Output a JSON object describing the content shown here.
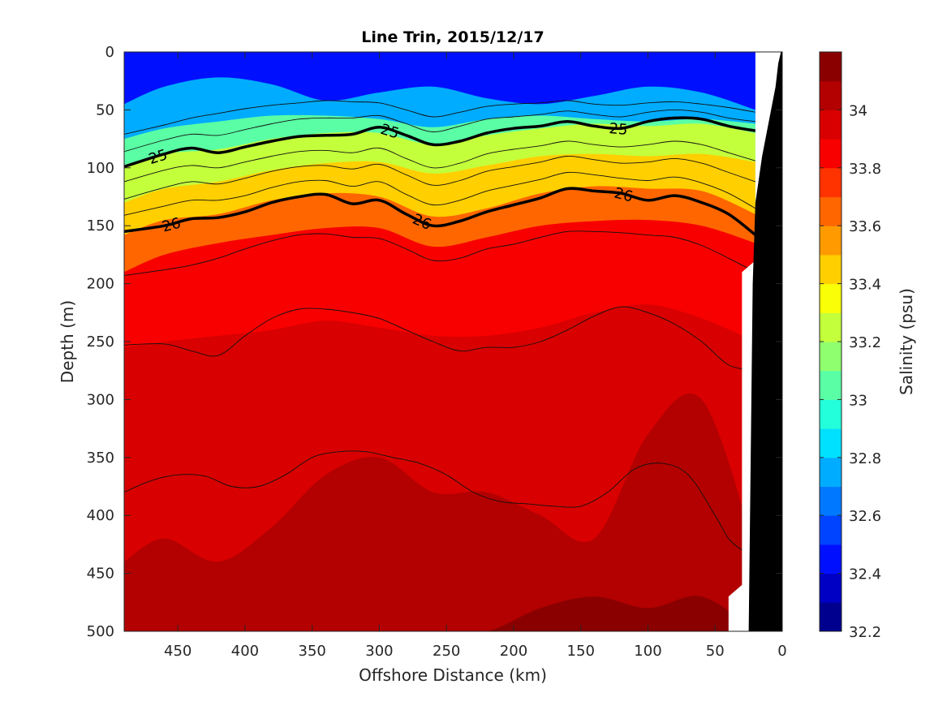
{
  "chart_data": {
    "type": "heatmap",
    "title": "Line Trin, 2015/12/17",
    "xlabel": "Offshore Distance (km)",
    "ylabel": "Depth (m)",
    "colorbar_label": "Salinity (psu)",
    "xlim": [
      490,
      0
    ],
    "ylim": [
      0,
      500
    ],
    "x_ticks": [
      450,
      400,
      350,
      300,
      250,
      200,
      150,
      100,
      50,
      0
    ],
    "y_ticks": [
      0,
      50,
      100,
      150,
      200,
      250,
      300,
      350,
      400,
      450,
      500
    ],
    "color_range": [
      32.2,
      34.2
    ],
    "colorbar_ticks": [
      32.2,
      32.4,
      32.6,
      32.8,
      33,
      33.2,
      33.4,
      33.6,
      33.8,
      34
    ],
    "colorbar_tick_labels": [
      "32.2",
      "32.4",
      "32.6",
      "32.8",
      "33",
      "33.2",
      "33.4",
      "33.6",
      "33.8",
      "34"
    ],
    "colorbar_levels": [
      32.2,
      32.3,
      32.4,
      32.5,
      32.6,
      32.7,
      32.8,
      32.9,
      33.0,
      33.1,
      33.2,
      33.3,
      33.4,
      33.5,
      33.6,
      33.7,
      33.8,
      33.9,
      34.0,
      34.1,
      34.2
    ],
    "colormap": [
      "#00008f",
      "#0000c4",
      "#0010ff",
      "#0044ff",
      "#0078ff",
      "#00acff",
      "#00e0ff",
      "#24ffdb",
      "#5affa5",
      "#90ff6f",
      "#c4ff3b",
      "#f8ff07",
      "#ffcf00",
      "#ff9b00",
      "#ff6600",
      "#ff3300",
      "#f80000",
      "#d80000",
      "#b30000",
      "#8a0000"
    ],
    "salinity_isolines": {
      "x": [
        490,
        460,
        420,
        380,
        340,
        300,
        260,
        220,
        180,
        140,
        100,
        60,
        20
      ],
      "levels": [
        {
          "salinity": 32.5,
          "depth": [
            45,
            30,
            22,
            28,
            42,
            35,
            30,
            40,
            45,
            38,
            30,
            35,
            50
          ]
        },
        {
          "salinity": 32.9,
          "depth": [
            75,
            66,
            60,
            55,
            55,
            58,
            65,
            58,
            55,
            58,
            60,
            58,
            62
          ]
        },
        {
          "salinity": 33.1,
          "depth": [
            100,
            88,
            84,
            75,
            70,
            70,
            80,
            72,
            66,
            62,
            64,
            62,
            70
          ]
        },
        {
          "salinity": 33.3,
          "depth": [
            130,
            118,
            112,
            102,
            96,
            95,
            105,
            98,
            90,
            88,
            90,
            88,
            95
          ]
        },
        {
          "salinity": 33.5,
          "depth": [
            158,
            145,
            140,
            128,
            122,
            125,
            142,
            135,
            122,
            116,
            118,
            120,
            140
          ]
        },
        {
          "salinity": 33.7,
          "depth": [
            190,
            175,
            165,
            158,
            152,
            152,
            168,
            160,
            150,
            146,
            145,
            150,
            165
          ]
        },
        {
          "salinity": 33.9,
          "depth": [
            255,
            250,
            245,
            240,
            232,
            238,
            245,
            245,
            238,
            225,
            218,
            230,
            250
          ]
        },
        {
          "salinity": 34.0,
          "depth": [
            440,
            420,
            440,
            410,
            365,
            350,
            380,
            380,
            400,
            420,
            330,
            300,
            430
          ]
        },
        {
          "salinity": 34.1,
          "depth": [
            500,
            500,
            500,
            500,
            500,
            500,
            500,
            500,
            480,
            470,
            480,
            470,
            500
          ]
        }
      ]
    },
    "density_contours": [
      {
        "label": "25",
        "x": [
          490,
          460,
          440,
          420,
          400,
          380,
          360,
          340,
          320,
          300,
          280,
          260,
          240,
          220,
          200,
          180,
          160,
          140,
          120,
          100,
          80,
          60,
          40,
          20
        ],
        "depth": [
          99,
          88,
          83,
          87,
          82,
          77,
          73,
          72,
          71,
          65,
          72,
          80,
          77,
          70,
          66,
          64,
          60,
          64,
          66,
          60,
          57,
          58,
          64,
          68
        ]
      },
      {
        "label": "26",
        "x": [
          490,
          460,
          440,
          420,
          400,
          380,
          360,
          340,
          320,
          300,
          280,
          260,
          240,
          220,
          200,
          180,
          160,
          140,
          120,
          100,
          80,
          60,
          40,
          20
        ],
        "depth": [
          155,
          150,
          144,
          143,
          138,
          130,
          125,
          123,
          131,
          128,
          140,
          150,
          146,
          138,
          132,
          126,
          118,
          120,
          122,
          128,
          124,
          130,
          140,
          158
        ]
      }
    ],
    "thin_isopycnals": [
      {
        "x": [
          490,
          460,
          440,
          420,
          400,
          380,
          360,
          340,
          320,
          300,
          280,
          260,
          240,
          220,
          200,
          180,
          160,
          140,
          120,
          100,
          80,
          60,
          40,
          20
        ],
        "depth": [
          71,
          63,
          57,
          53,
          49,
          46,
          44,
          42,
          43,
          44,
          50,
          56,
          52,
          47,
          45,
          44,
          42,
          45,
          46,
          44,
          43,
          45,
          48,
          52
        ]
      },
      {
        "x": [
          490,
          460,
          440,
          420,
          400,
          380,
          360,
          340,
          320,
          300,
          280,
          260,
          240,
          220,
          200,
          180,
          160,
          140,
          120,
          100,
          80,
          60,
          40,
          20
        ],
        "depth": [
          86,
          76,
          71,
          72,
          67,
          62,
          58,
          57,
          57,
          55,
          62,
          69,
          64,
          58,
          56,
          54,
          51,
          54,
          56,
          52,
          50,
          52,
          57,
          60
        ]
      },
      {
        "x": [
          490,
          460,
          440,
          420,
          400,
          380,
          360,
          340,
          320,
          300,
          280,
          260,
          240,
          220,
          200,
          180,
          160,
          140,
          120,
          100,
          80,
          60,
          40,
          20
        ],
        "depth": [
          112,
          102,
          98,
          100,
          95,
          90,
          86,
          85,
          87,
          83,
          92,
          100,
          96,
          88,
          84,
          81,
          77,
          80,
          82,
          80,
          77,
          80,
          87,
          94
        ]
      },
      {
        "x": [
          490,
          460,
          440,
          420,
          400,
          380,
          360,
          340,
          320,
          300,
          280,
          260,
          240,
          220,
          200,
          180,
          160,
          140,
          120,
          100,
          80,
          60,
          40,
          20
        ],
        "depth": [
          127,
          117,
          112,
          114,
          109,
          103,
          99,
          98,
          101,
          97,
          106,
          115,
          111,
          103,
          99,
          95,
          90,
          93,
          96,
          95,
          92,
          96,
          104,
          112
        ]
      },
      {
        "x": [
          490,
          460,
          440,
          420,
          400,
          380,
          360,
          340,
          320,
          300,
          280,
          260,
          240,
          220,
          200,
          180,
          160,
          140,
          120,
          100,
          80,
          60,
          40,
          20
        ],
        "depth": [
          141,
          133,
          128,
          128,
          124,
          117,
          112,
          111,
          116,
          112,
          123,
          132,
          128,
          120,
          115,
          110,
          104,
          106,
          109,
          111,
          108,
          113,
          122,
          135
        ]
      },
      {
        "x": [
          490,
          460,
          440,
          420,
          400,
          380,
          360,
          340,
          320,
          300,
          280,
          260,
          240,
          220,
          200,
          180,
          160,
          140,
          120,
          100,
          80,
          60,
          40,
          20
        ],
        "depth": [
          193,
          188,
          184,
          178,
          170,
          163,
          158,
          157,
          160,
          161,
          170,
          180,
          178,
          170,
          166,
          160,
          155,
          155,
          156,
          158,
          160,
          167,
          178,
          190
        ]
      },
      {
        "x": [
          490,
          460,
          440,
          420,
          400,
          380,
          360,
          340,
          320,
          300,
          280,
          260,
          240,
          220,
          200,
          180,
          160,
          140,
          120,
          100,
          80,
          60,
          40,
          20
        ],
        "depth": [
          253,
          252,
          258,
          262,
          245,
          230,
          222,
          222,
          225,
          230,
          240,
          250,
          258,
          255,
          255,
          250,
          240,
          228,
          220,
          225,
          235,
          250,
          270,
          275
        ]
      },
      {
        "x": [
          490,
          470,
          450,
          430,
          410,
          390,
          370,
          350,
          330,
          310,
          290,
          270,
          250,
          230,
          210,
          190,
          170,
          150,
          130,
          110,
          90,
          70,
          50,
          40,
          30
        ],
        "depth": [
          380,
          370,
          365,
          366,
          375,
          375,
          365,
          350,
          345,
          345,
          350,
          355,
          365,
          380,
          388,
          390,
          392,
          392,
          380,
          360,
          355,
          365,
          400,
          420,
          430
        ]
      }
    ],
    "seafloor": {
      "x": [
        25,
        22,
        20,
        15,
        10,
        5,
        3,
        1
      ],
      "depth": [
        500,
        200,
        130,
        90,
        60,
        30,
        10,
        0
      ]
    }
  }
}
